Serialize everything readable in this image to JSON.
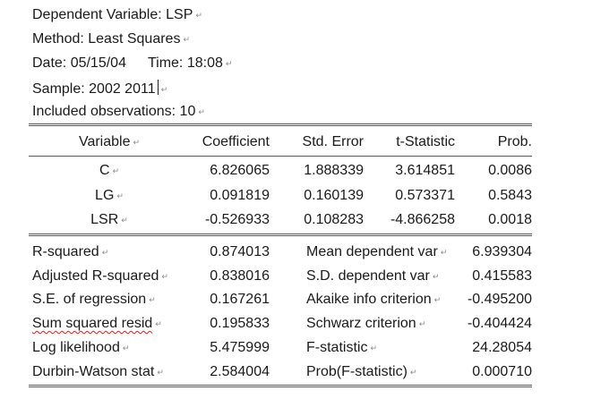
{
  "header": {
    "dependent": "Dependent Variable: LSP",
    "method": "Method: Least Squares",
    "date": "Date: 05/15/04",
    "time": "Time: 18:08",
    "sample": "Sample: 2002 2011",
    "observations": "Included observations: 10"
  },
  "table": {
    "columns": [
      "Variable",
      "Coefficient",
      "Std. Error",
      "t-Statistic",
      "Prob."
    ],
    "rows": [
      {
        "variable": "C",
        "coefficient": "6.826065",
        "std_error": "1.888339",
        "t_stat": "3.614851",
        "prob": "0.0086"
      },
      {
        "variable": "LG",
        "coefficient": "0.091819",
        "std_error": "0.160139",
        "t_stat": "0.573371",
        "prob": "0.5843"
      },
      {
        "variable": "LSR",
        "coefficient": "-0.526933",
        "std_error": "0.108283",
        "t_stat": "-4.866258",
        "prob": "0.0018"
      }
    ]
  },
  "stats": [
    {
      "label": "R-squared",
      "value": "0.874013",
      "label2": "Mean dependent var",
      "value2": "6.939304"
    },
    {
      "label": "Adjusted R-squared",
      "value": "0.838016",
      "label2": "S.D. dependent var",
      "value2": "0.415583"
    },
    {
      "label": "S.E. of regression",
      "value": "0.167261",
      "label2": "Akaike info criterion",
      "value2": "-0.495200"
    },
    {
      "label": "Sum squared resid",
      "value": "0.195833",
      "label2": "Schwarz criterion",
      "value2": "-0.404424"
    },
    {
      "label": "Log likelihood",
      "value": "5.475999",
      "label2": "F-statistic",
      "value2": "24.28054"
    },
    {
      "label": "Durbin-Watson stat",
      "value": "2.584004",
      "label2": "Prob(F-statistic)",
      "value2": "0.000710"
    }
  ]
}
